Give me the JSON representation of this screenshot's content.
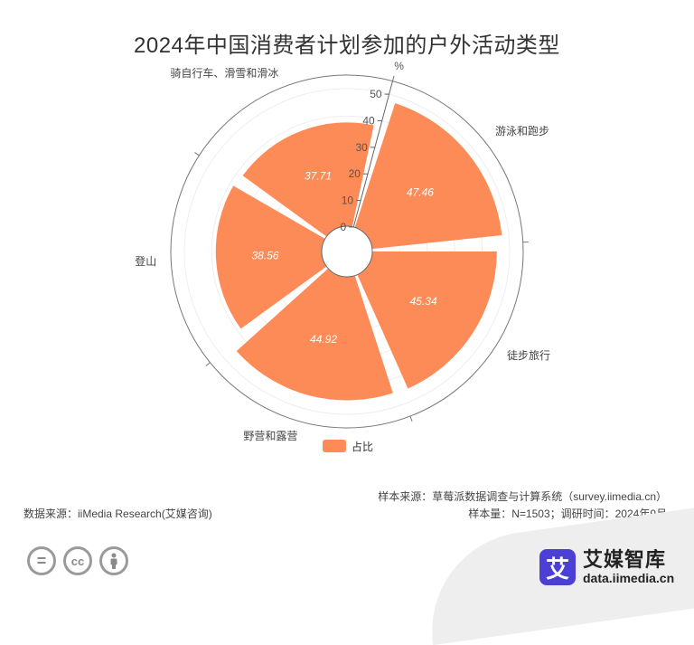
{
  "title": "2024年中国消费者计划参加的户外活动类型",
  "chart_data": {
    "type": "polar-bar",
    "radial_unit": "%",
    "radial_range": [
      0,
      50
    ],
    "radial_ticks": [
      0,
      10,
      20,
      30,
      40,
      50
    ],
    "categories": [
      "游泳和跑步",
      "徒步旅行",
      "野营和露营",
      "登山",
      "骑自行车、滑雪和滑冰"
    ],
    "series": [
      {
        "name": "占比",
        "values": [
          47.46,
          45.34,
          44.92,
          38.56,
          37.71
        ]
      }
    ],
    "legend_position": "bottom",
    "color": "#fd8b57"
  },
  "legend": {
    "label": "占比"
  },
  "footer": {
    "source_left": "数据来源：iiMedia Research(艾媒咨询)",
    "source_right_1": "样本来源：草莓派数据调查与计算系统（survey.iimedia.cn）",
    "source_right_2": "样本量：N=1503；调研时间：2024年9月"
  },
  "logo": {
    "mark": "艾",
    "name_cn": "艾媒智库",
    "name_en": "data.iimedia.cn"
  },
  "icons": [
    "cc-equal-icon",
    "cc-creative-commons-icon",
    "cc-attribution-icon"
  ]
}
